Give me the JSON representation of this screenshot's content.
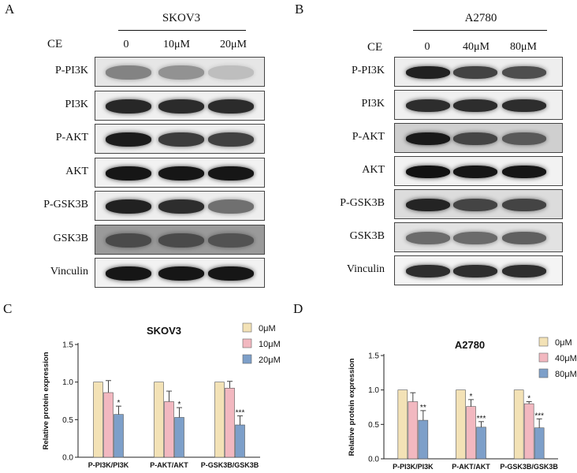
{
  "panels": {
    "A": {
      "letter": "A",
      "title": "SKOV3",
      "treatment_label": "CE",
      "lanes": [
        "0",
        "10μM",
        "20μM"
      ],
      "rows": [
        "P-PI3K",
        "PI3K",
        "P-AKT",
        "AKT",
        "P-GSK3B",
        "GSK3B",
        "Vinculin"
      ]
    },
    "B": {
      "letter": "B",
      "title": "A2780",
      "treatment_label": "CE",
      "lanes": [
        "0",
        "40μM",
        "80μM"
      ],
      "rows": [
        "P-PI3K",
        "PI3K",
        "P-AKT",
        "AKT",
        "P-GSK3B",
        "GSK3B",
        "Vinculin"
      ]
    },
    "C": {
      "letter": "C"
    },
    "D": {
      "letter": "D"
    }
  },
  "chart_data": [
    {
      "type": "bar",
      "title": "SKOV3",
      "xlabel": "",
      "ylabel": "Relative protein expression",
      "ylim": [
        0,
        1.5
      ],
      "yticks": [
        "0.0",
        "0.5",
        "1.0",
        "1.5"
      ],
      "categories": [
        "P-PI3K/PI3K",
        "P-AKT/AKT",
        "P-GSK3B/GSK3B"
      ],
      "series": [
        {
          "name": "0μM",
          "color": "#f3e2b6",
          "values": [
            1.0,
            1.0,
            1.0
          ],
          "errors": [
            0,
            0,
            0
          ]
        },
        {
          "name": "10μM",
          "color": "#f2b8c0",
          "values": [
            0.86,
            0.74,
            0.92
          ],
          "errors": [
            0.16,
            0.14,
            0.09
          ]
        },
        {
          "name": "20μM",
          "color": "#7d9fc9",
          "values": [
            0.57,
            0.53,
            0.43
          ],
          "errors": [
            0.11,
            0.13,
            0.12
          ]
        }
      ],
      "annotations": [
        {
          "category": 0,
          "series": 2,
          "text": "*"
        },
        {
          "category": 1,
          "series": 2,
          "text": "*"
        },
        {
          "category": 2,
          "series": 2,
          "text": "***"
        }
      ],
      "legend_position": "top-right"
    },
    {
      "type": "bar",
      "title": "A2780",
      "xlabel": "",
      "ylabel": "Relative protein expression",
      "ylim": [
        0,
        1.5
      ],
      "yticks": [
        "0.0",
        "0.5",
        "1.0",
        "1.5"
      ],
      "categories": [
        "P-PI3K/PI3K",
        "P-AKT/AKT",
        "P-GSK3B/GSK3B"
      ],
      "series": [
        {
          "name": "0μM",
          "color": "#f3e2b6",
          "values": [
            1.0,
            1.0,
            1.0
          ],
          "errors": [
            0,
            0,
            0
          ]
        },
        {
          "name": "40μM",
          "color": "#f2b8c0",
          "values": [
            0.83,
            0.76,
            0.8
          ],
          "errors": [
            0.13,
            0.1,
            0.03
          ]
        },
        {
          "name": "80μM",
          "color": "#7d9fc9",
          "values": [
            0.56,
            0.46,
            0.45
          ],
          "errors": [
            0.14,
            0.08,
            0.13
          ]
        }
      ],
      "annotations": [
        {
          "category": 0,
          "series": 2,
          "text": "**"
        },
        {
          "category": 1,
          "series": 1,
          "text": "*"
        },
        {
          "category": 1,
          "series": 2,
          "text": "***"
        },
        {
          "category": 2,
          "series": 1,
          "text": "*"
        },
        {
          "category": 2,
          "series": 2,
          "text": "***"
        }
      ],
      "legend_position": "top-right"
    }
  ]
}
